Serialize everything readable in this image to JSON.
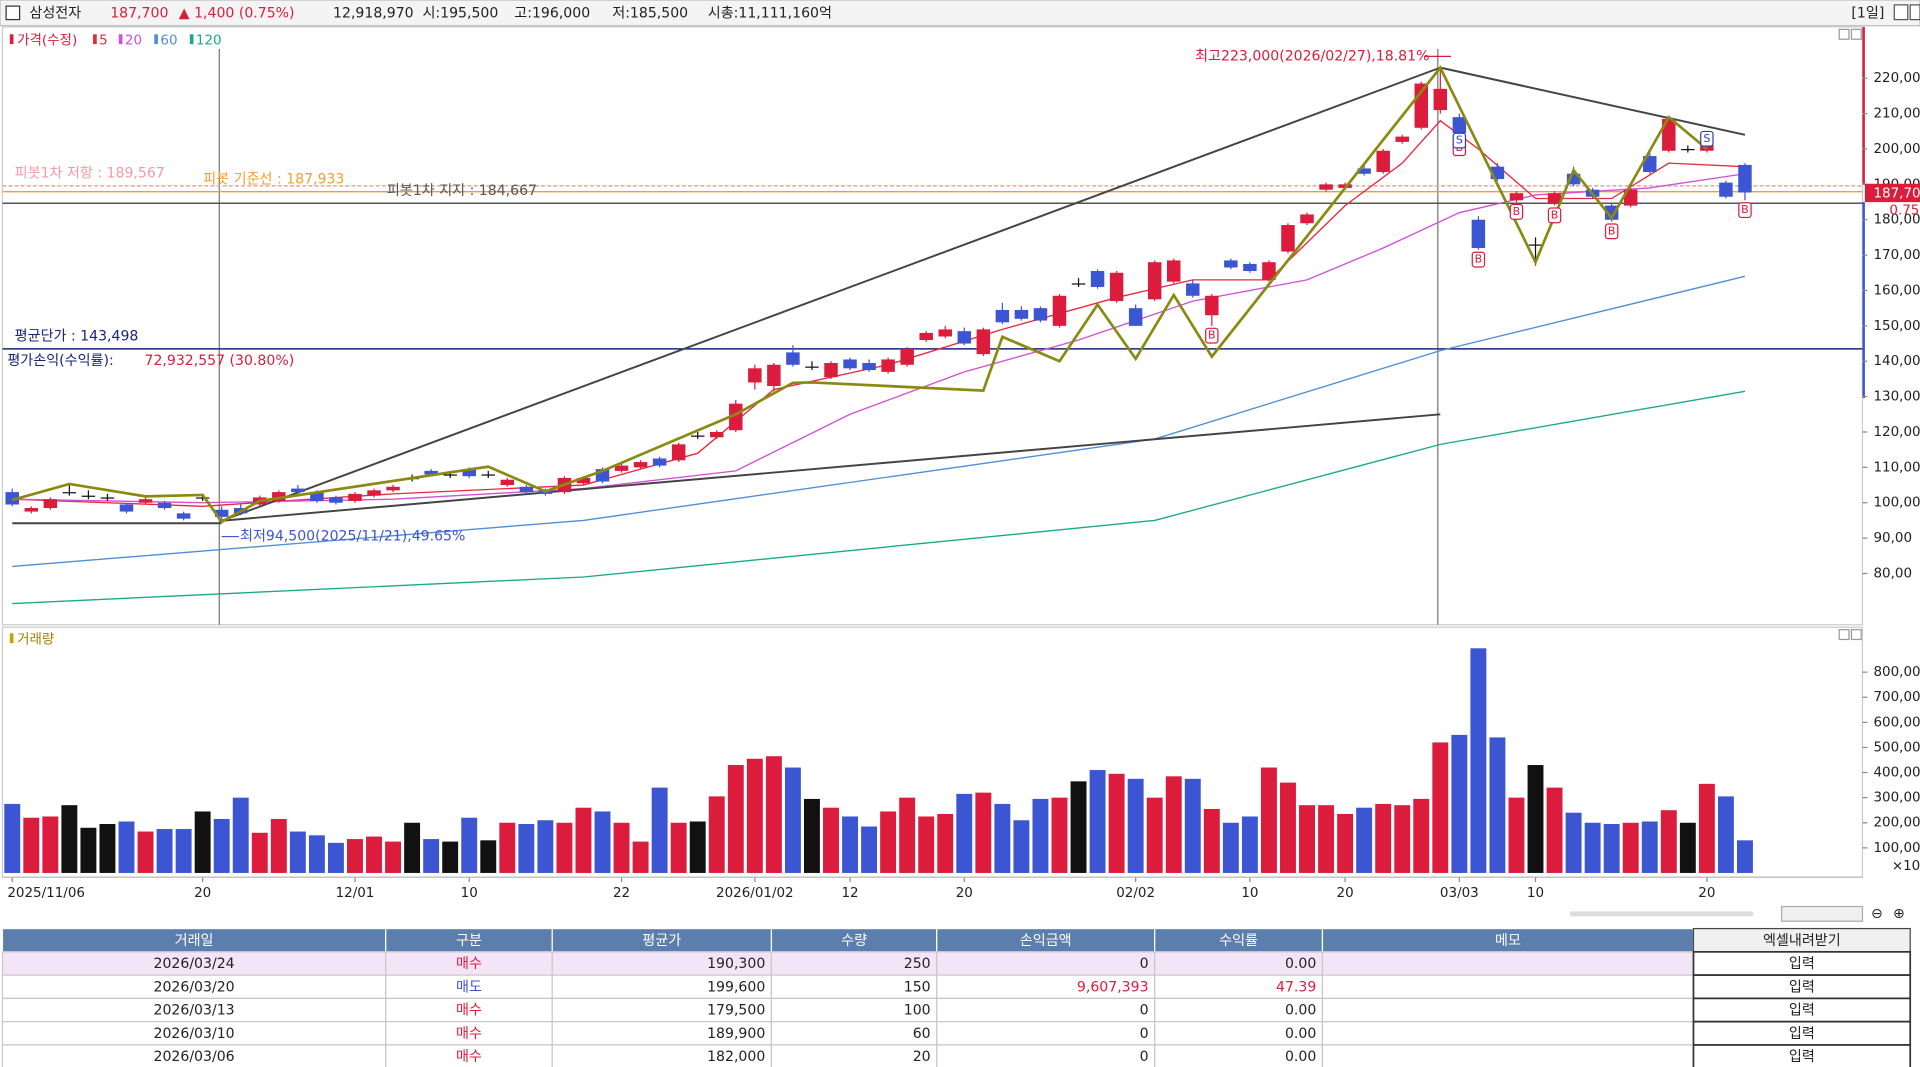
{
  "header": {
    "name": "삼성전자",
    "price": "187,700",
    "change": "▲ 1,400 (0.75%)",
    "volume": "12,918,970",
    "open": "시:195,500",
    "high": "고:196,000",
    "low": "저:185,500",
    "cap": "시총:11,111,160억",
    "period": "[1일]"
  },
  "chart_data": {
    "type": "candlestick",
    "title": "가격(수정)",
    "categories": [
      "2025/11/06",
      null,
      null,
      null,
      null,
      null,
      null,
      null,
      null,
      null,
      "20",
      null,
      null,
      null,
      null,
      null,
      null,
      null,
      "12/01",
      null,
      null,
      null,
      null,
      null,
      "10",
      null,
      null,
      null,
      null,
      null,
      null,
      null,
      "22",
      null,
      null,
      null,
      null,
      null,
      null,
      "2026/01/02",
      null,
      null,
      null,
      null,
      "12",
      null,
      null,
      null,
      null,
      null,
      "20",
      null,
      null,
      null,
      null,
      null,
      null,
      null,
      null,
      "02/02",
      null,
      null,
      null,
      null,
      null,
      "10",
      null,
      null,
      null,
      null,
      "20",
      null,
      null,
      null,
      null,
      null,
      "03/03",
      null,
      null,
      null,
      "10",
      null,
      null,
      null,
      null,
      null,
      null,
      null,
      null,
      "20",
      null,
      null
    ],
    "candles": [
      [
        103000,
        104000,
        99000,
        99500
      ],
      [
        97500,
        99000,
        97000,
        98500
      ],
      [
        98500,
        101500,
        98000,
        101000
      ],
      [
        103000,
        105000,
        102000,
        103000
      ],
      [
        102000,
        103500,
        101000,
        102000
      ],
      [
        101500,
        102500,
        100500,
        101500
      ],
      [
        99500,
        100000,
        97000,
        97500
      ],
      [
        100000,
        101500,
        99500,
        101000
      ],
      [
        100000,
        100500,
        98000,
        98500
      ],
      [
        97000,
        97500,
        95000,
        95500
      ],
      [
        101500,
        102500,
        100500,
        101500
      ],
      [
        98000,
        99000,
        94500,
        96000
      ],
      [
        98500,
        99500,
        96500,
        97000
      ],
      [
        99500,
        102000,
        99000,
        101500
      ],
      [
        100500,
        103500,
        100000,
        103000
      ],
      [
        104000,
        105000,
        102500,
        103000
      ],
      [
        103000,
        103500,
        100000,
        100500
      ],
      [
        101500,
        102000,
        99500,
        100000
      ],
      [
        100500,
        103000,
        100000,
        102500
      ],
      [
        102000,
        104000,
        101500,
        103500
      ],
      [
        103500,
        105000,
        103000,
        104500
      ],
      [
        107000,
        108000,
        106000,
        107000
      ],
      [
        109000,
        109500,
        107500,
        108000
      ],
      [
        108000,
        109000,
        107000,
        108000
      ],
      [
        109500,
        110000,
        107000,
        107500
      ],
      [
        108000,
        109000,
        107000,
        108000
      ],
      [
        105000,
        107000,
        104500,
        106500
      ],
      [
        104500,
        105000,
        102500,
        103000
      ],
      [
        103500,
        104000,
        102000,
        102500
      ],
      [
        103000,
        107500,
        102500,
        107000
      ],
      [
        105500,
        107500,
        105000,
        107000
      ],
      [
        109500,
        110000,
        105500,
        106000
      ],
      [
        109000,
        111000,
        108500,
        110500
      ],
      [
        110000,
        112000,
        109500,
        111500
      ],
      [
        112500,
        113000,
        110000,
        110500
      ],
      [
        112000,
        117000,
        111500,
        116500
      ],
      [
        119000,
        120000,
        118000,
        119000
      ],
      [
        118500,
        120500,
        118000,
        120000
      ],
      [
        120500,
        129000,
        120000,
        128000
      ],
      [
        134000,
        139000,
        132000,
        138000
      ],
      [
        133000,
        139500,
        131500,
        139000
      ],
      [
        142500,
        144500,
        138500,
        139000
      ],
      [
        138500,
        140000,
        137500,
        138500
      ],
      [
        135500,
        140000,
        135000,
        139500
      ],
      [
        140500,
        141000,
        137500,
        138000
      ],
      [
        139500,
        140500,
        137000,
        137500
      ],
      [
        137000,
        141000,
        136500,
        140500
      ],
      [
        139000,
        144000,
        138500,
        143500
      ],
      [
        146000,
        148500,
        145500,
        148000
      ],
      [
        147000,
        150000,
        146500,
        149000
      ],
      [
        148500,
        149500,
        144500,
        145000
      ],
      [
        142000,
        149500,
        141500,
        149000
      ],
      [
        154500,
        156500,
        150500,
        151000
      ],
      [
        154500,
        155500,
        151500,
        152000
      ],
      [
        155000,
        155500,
        151000,
        151500
      ],
      [
        150000,
        159000,
        149500,
        158500
      ],
      [
        162000,
        163500,
        161000,
        162000
      ],
      [
        165500,
        166000,
        160500,
        161000
      ],
      [
        157000,
        165500,
        156500,
        165000
      ],
      [
        155000,
        156000,
        150000,
        150000
      ],
      [
        157500,
        168500,
        157000,
        168000
      ],
      [
        162500,
        169000,
        162000,
        168500
      ],
      [
        162000,
        163000,
        158000,
        158500
      ],
      [
        153000,
        159000,
        150000,
        158500
      ],
      [
        168500,
        169000,
        166000,
        166500
      ],
      [
        167500,
        168000,
        165000,
        165500
      ],
      [
        163000,
        168500,
        162500,
        168000
      ],
      [
        171000,
        179000,
        170500,
        178500
      ],
      [
        179000,
        182000,
        178500,
        181500
      ],
      [
        188500,
        190500,
        188000,
        190000
      ],
      [
        189000,
        190500,
        188500,
        190000
      ],
      [
        194500,
        195500,
        192500,
        193000
      ],
      [
        193500,
        200000,
        193000,
        199500
      ],
      [
        202000,
        204000,
        201500,
        203500
      ],
      [
        206000,
        219000,
        205500,
        218500
      ],
      [
        211000,
        223000,
        210000,
        217000
      ],
      [
        209000,
        210000,
        203000,
        204500
      ],
      [
        180000,
        181000,
        171500,
        172000
      ],
      [
        195000,
        196000,
        191000,
        191500
      ],
      [
        185500,
        188000,
        185000,
        187500
      ],
      [
        173000,
        175000,
        167000,
        173000
      ],
      [
        184500,
        188000,
        184000,
        187500
      ],
      [
        193000,
        195000,
        189500,
        190000
      ],
      [
        188500,
        189000,
        186000,
        186500
      ],
      [
        184000,
        184500,
        179500,
        180000
      ],
      [
        184000,
        189000,
        183500,
        188500
      ],
      [
        198000,
        199000,
        193000,
        193500
      ],
      [
        199500,
        209000,
        199000,
        208500
      ],
      [
        200000,
        201000,
        199000,
        200000
      ],
      [
        199500,
        201500,
        199000,
        201000
      ],
      [
        190500,
        191000,
        186000,
        186500
      ],
      [
        195500,
        196000,
        185500,
        187700
      ]
    ],
    "up_color": "#dc1c3c",
    "down_color": "#3c55d2",
    "flat_color": "#111111",
    "ylim": [
      65500,
      234500
    ],
    "yticks": [
      {
        "value": 80000,
        "label": "80,00"
      },
      {
        "value": 90000,
        "label": "90,00"
      },
      {
        "value": 100000,
        "label": "100,00"
      },
      {
        "value": 110000,
        "label": "110,00"
      },
      {
        "value": 120000,
        "label": "120,00"
      },
      {
        "value": 130000,
        "label": "130,00"
      },
      {
        "value": 140000,
        "label": "140,00"
      },
      {
        "value": 150000,
        "label": "150,00"
      },
      {
        "value": 160000,
        "label": "160,00"
      },
      {
        "value": 170000,
        "label": "170,00"
      },
      {
        "value": 180000,
        "label": "180,00"
      },
      {
        "value": 190000,
        "label": "190,00"
      },
      {
        "value": 200000,
        "label": "200,00"
      },
      {
        "value": 210000,
        "label": "210,00"
      },
      {
        "value": 220000,
        "label": "220,00"
      }
    ],
    "series": [
      {
        "name": "5",
        "color": "#e8283c",
        "x": [
          0,
          10,
          20,
          30,
          36,
          40,
          46,
          52,
          58,
          62,
          66,
          70,
          73,
          75,
          77,
          80,
          84,
          87,
          91
        ],
        "values": [
          101000,
          99000,
          102500,
          105000,
          114000,
          132000,
          139000,
          149000,
          158000,
          163000,
          163000,
          184000,
          196000,
          208000,
          200000,
          186000,
          186000,
          196000,
          195000
        ]
      },
      {
        "name": "20",
        "color": "#d24fd6",
        "x": [
          0,
          10,
          20,
          30,
          38,
          44,
          50,
          56,
          62,
          68,
          72,
          76,
          80,
          86,
          91
        ],
        "values": [
          101000,
          100000,
          101000,
          104000,
          109000,
          125000,
          137000,
          146000,
          157000,
          163000,
          172000,
          182000,
          187000,
          189000,
          193000
        ]
      },
      {
        "name": "60",
        "color": "#4f8fd6",
        "x": [
          0,
          30,
          60,
          75,
          91
        ],
        "values": [
          82000,
          95000,
          118000,
          143000,
          164000
        ]
      },
      {
        "name": "120",
        "color": "#1aa98a",
        "x": [
          0,
          30,
          60,
          75,
          91
        ],
        "values": [
          71500,
          79000,
          95000,
          116500,
          131500
        ]
      }
    ],
    "zigzag": {
      "color": "#8a8a10",
      "x": [
        0,
        3,
        7,
        10,
        11,
        13,
        25,
        28,
        31,
        38,
        41,
        42,
        51,
        52,
        55,
        57,
        59,
        61,
        63,
        75,
        80,
        82,
        84,
        87,
        89
      ],
      "values": [
        100800,
        105300,
        101800,
        102200,
        94600,
        100500,
        110200,
        103200,
        109000,
        125000,
        133900,
        134000,
        131700,
        146900,
        140000,
        156000,
        140700,
        158700,
        141300,
        223000,
        168000,
        194000,
        180500,
        209000,
        200000
      ]
    },
    "trendlines": [
      {
        "x": [
          11,
          75
        ],
        "values": [
          94900,
          223000
        ]
      },
      {
        "x": [
          75,
          91
        ],
        "values": [
          223000,
          204000
        ]
      },
      {
        "x": [
          0,
          11
        ],
        "values": [
          94200,
          94200
        ]
      },
      {
        "x": [
          11,
          75
        ],
        "values": [
          94900,
          125000
        ]
      }
    ],
    "levels": [
      {
        "label": "피봇1차 저항 : 189,567",
        "value": 189567,
        "color": "#f29aa6"
      },
      {
        "label": "피봇 기준선 : 187,933",
        "value": 187933,
        "color": "#f0a030"
      },
      {
        "label": "피봇1차 지지 : 184,667",
        "value": 184667,
        "color": "#555555"
      }
    ],
    "average": {
      "label": "평균단가 : 143,498",
      "value": 143498,
      "color": "#1a237e"
    },
    "pnl_label": "평가손익(수익률):",
    "pnl_value": "72,932,557 (30.80%)",
    "high_note": "최고223,000(2026/02/27),18.81%",
    "low_note": "최저94,500(2025/11/21),49.65%",
    "price_tag": "187,70",
    "change_tag": "0.75",
    "markers": [
      {
        "x": 63,
        "label": "B"
      },
      {
        "x": 76,
        "label": "B"
      },
      {
        "x": 76,
        "label": "S"
      },
      {
        "x": 77,
        "label": "B"
      },
      {
        "x": 79,
        "label": "B"
      },
      {
        "x": 81,
        "label": "B"
      },
      {
        "x": 84,
        "label": "B"
      },
      {
        "x": 89,
        "label": "S"
      },
      {
        "x": 91,
        "label": "B"
      }
    ],
    "volume": {
      "title": "거래량",
      "unit": "×10",
      "ylim": [
        0,
        940000
      ],
      "values": [
        275000,
        220000,
        225000,
        270000,
        180000,
        195000,
        205000,
        165000,
        175000,
        175000,
        245000,
        215000,
        300000,
        160000,
        215000,
        165000,
        150000,
        120000,
        135000,
        145000,
        125000,
        200000,
        135000,
        125000,
        220000,
        130000,
        200000,
        195000,
        210000,
        200000,
        260000,
        245000,
        200000,
        125000,
        340000,
        200000,
        205000,
        305000,
        430000,
        455000,
        465000,
        420000,
        295000,
        260000,
        225000,
        185000,
        245000,
        300000,
        225000,
        235000,
        315000,
        320000,
        275000,
        210000,
        295000,
        300000,
        365000,
        410000,
        395000,
        375000,
        300000,
        385000,
        375000,
        255000,
        200000,
        225000,
        420000,
        360000,
        270000,
        270000,
        235000,
        260000,
        275000,
        270000,
        295000,
        520000,
        550000,
        895000,
        540000,
        300000,
        430000,
        340000,
        240000,
        200000,
        195000,
        200000,
        205000,
        250000,
        200000,
        355000,
        305000,
        130000
      ],
      "yticks": [
        {
          "value": 100000,
          "label": "100,00"
        },
        {
          "value": 200000,
          "label": "200,00"
        },
        {
          "value": 300000,
          "label": "300,00"
        },
        {
          "value": 400000,
          "label": "400,00"
        },
        {
          "value": 500000,
          "label": "500,00"
        },
        {
          "value": 600000,
          "label": "600,00"
        },
        {
          "value": 700000,
          "label": "700,00"
        },
        {
          "value": 800000,
          "label": "800,00"
        }
      ]
    }
  },
  "table": {
    "headers": [
      "거래일",
      "구분",
      "평균가",
      "수량",
      "손익금액",
      "수익률",
      "메모",
      "엑셀내려받기"
    ],
    "rows": [
      [
        "2026/03/24",
        "매수",
        "190,300",
        "250",
        "0",
        "0.00",
        "",
        "입력"
      ],
      [
        "2026/03/20",
        "매도",
        "199,600",
        "150",
        "9,607,393",
        "47.39",
        "",
        "입력"
      ],
      [
        "2026/03/13",
        "매수",
        "179,500",
        "100",
        "0",
        "0.00",
        "",
        "입력"
      ],
      [
        "2026/03/10",
        "매수",
        "189,900",
        "60",
        "0",
        "0.00",
        "",
        "입력"
      ],
      [
        "2026/03/06",
        "매수",
        "182,000",
        "20",
        "0",
        "0.00",
        "",
        "입력"
      ]
    ]
  }
}
